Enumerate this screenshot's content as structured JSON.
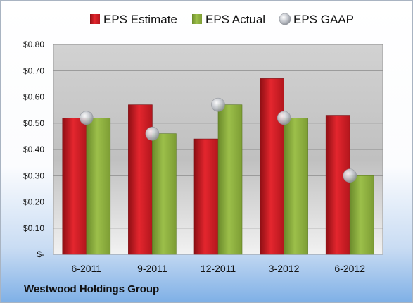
{
  "chart_data": {
    "type": "bar",
    "categories": [
      "6-2011",
      "9-2011",
      "12-2011",
      "3-2012",
      "6-2012"
    ],
    "series": [
      {
        "name": "EPS Estimate",
        "type": "bar",
        "color": "#cc1f26",
        "values": [
          0.52,
          0.57,
          0.44,
          0.67,
          0.53
        ]
      },
      {
        "name": "EPS Actual",
        "type": "bar",
        "color": "#8aae3c",
        "values": [
          0.52,
          0.46,
          0.57,
          0.52,
          0.3
        ]
      },
      {
        "name": "EPS GAAP",
        "type": "scatter",
        "color": "#b8bcc4",
        "values": [
          0.52,
          0.46,
          0.57,
          0.52,
          0.3
        ]
      }
    ],
    "y_ticks": [
      {
        "value": 0.0,
        "label": "$-"
      },
      {
        "value": 0.1,
        "label": "$0.10"
      },
      {
        "value": 0.2,
        "label": "$0.20"
      },
      {
        "value": 0.3,
        "label": "$0.30"
      },
      {
        "value": 0.4,
        "label": "$0.40"
      },
      {
        "value": 0.5,
        "label": "$0.50"
      },
      {
        "value": 0.6,
        "label": "$0.60"
      },
      {
        "value": 0.7,
        "label": "$0.70"
      },
      {
        "value": 0.8,
        "label": "$0.80"
      }
    ],
    "ylim": [
      0,
      0.8
    ],
    "grid": true,
    "legend_position": "top",
    "footer": "Westwood Holdings Group"
  }
}
